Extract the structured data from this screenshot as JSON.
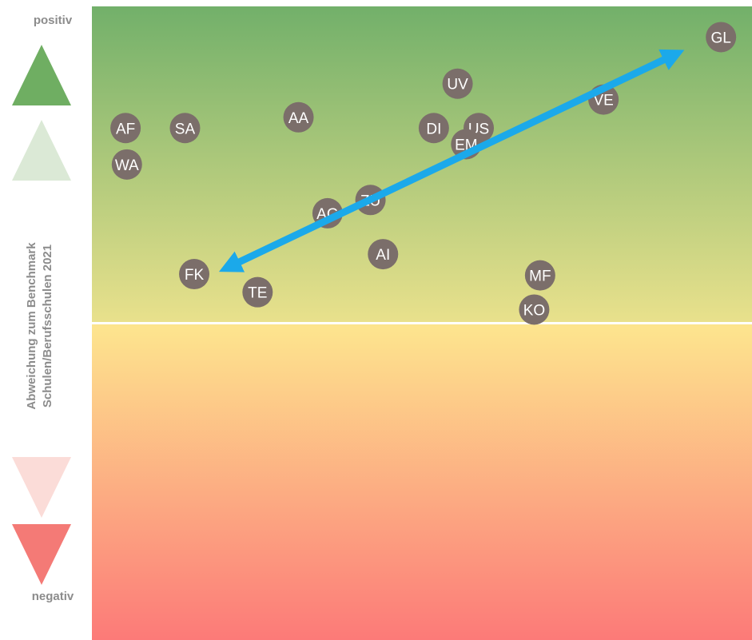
{
  "labels": {
    "positive": "positiv",
    "negative": "negativ",
    "axis_line1": "Abweichung zum Benchmark",
    "axis_line2": "Schulen/Berufsschulen 2021"
  },
  "colors": {
    "top": "#72b06a",
    "mid_upper": "#e9e18c",
    "mid_lower": "#fde58e",
    "bottom": "#fc7a78",
    "divider": "#ffffff",
    "bubble": "#7b6e6a",
    "arrow": "#1ba9ea",
    "triangle_up": "#6fae62",
    "triangle_up_light": "#dbe9d6",
    "triangle_down_light": "#fbdcd8",
    "triangle_down": "#f47a76"
  },
  "chart_data": {
    "type": "scatter",
    "title": "",
    "xlabel": "",
    "ylabel": "Abweichung zum Benchmark Schulen/Berufsschulen 2021",
    "xlim": [
      0,
      100
    ],
    "ylim": [
      -100,
      100
    ],
    "grid": false,
    "points": [
      {
        "label": "GL",
        "x": 95.3,
        "y": 90.3
      },
      {
        "label": "UV",
        "x": 55.4,
        "y": 75.6
      },
      {
        "label": "VE",
        "x": 77.5,
        "y": 70.6
      },
      {
        "label": "AA",
        "x": 31.3,
        "y": 65.0
      },
      {
        "label": "AF",
        "x": 5.1,
        "y": 61.6
      },
      {
        "label": "SA",
        "x": 14.1,
        "y": 61.6
      },
      {
        "label": "DI",
        "x": 51.8,
        "y": 61.6
      },
      {
        "label": "US",
        "x": 58.6,
        "y": 61.6
      },
      {
        "label": "EM",
        "x": 56.7,
        "y": 56.5
      },
      {
        "label": "WA",
        "x": 5.3,
        "y": 50.1
      },
      {
        "label": "ZU",
        "x": 42.2,
        "y": 38.9
      },
      {
        "label": "AG",
        "x": 35.7,
        "y": 34.7
      },
      {
        "label": "AI",
        "x": 44.1,
        "y": 21.8
      },
      {
        "label": "FK",
        "x": 15.5,
        "y": 15.5
      },
      {
        "label": "MF",
        "x": 67.9,
        "y": 15.1
      },
      {
        "label": "TE",
        "x": 25.1,
        "y": 9.8
      },
      {
        "label": "KO",
        "x": 67.0,
        "y": 4.3
      }
    ],
    "trend_arrow": {
      "from": {
        "x": 20.5,
        "y": 17.5
      },
      "to": {
        "x": 88.5,
        "y": 85.0
      },
      "double_headed": true
    }
  }
}
